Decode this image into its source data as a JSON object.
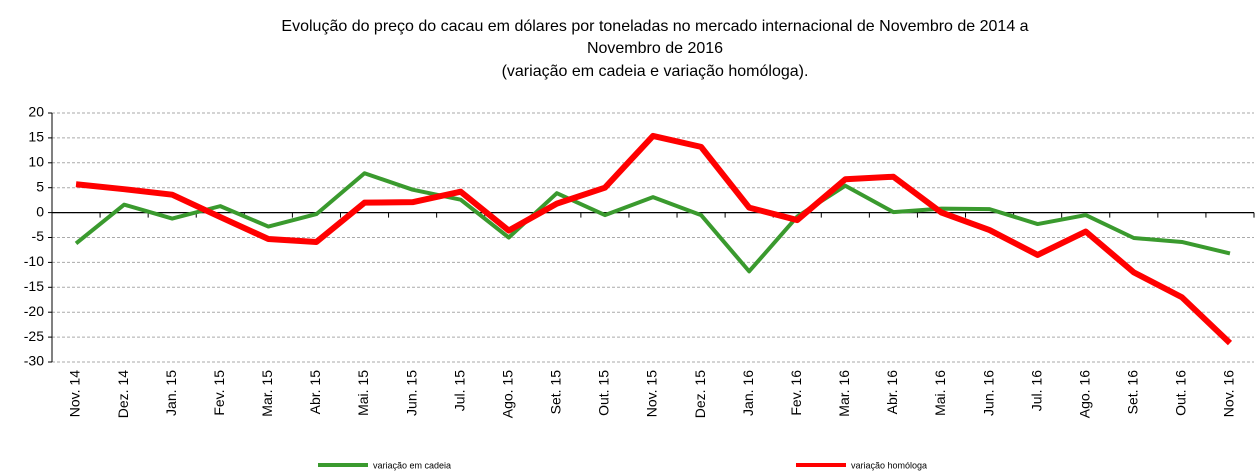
{
  "chart_data": {
    "type": "line",
    "title": [
      "Evolução do preço do cacau em dólares por toneladas no mercado internacional de Novembro de 2014 a",
      "Novembro de 2016"
    ],
    "subtitle": "(variação em cadeia e variação homóloga).",
    "categories": [
      "Nov. 14",
      "Dez. 14",
      "Jan. 15",
      "Fev. 15",
      "Mar. 15",
      "Abr. 15",
      "Mai. 15",
      "Jun. 15",
      "Jul. 15",
      "Ago. 15",
      "Set. 15",
      "Out. 15",
      "Nov. 15",
      "Dez. 15",
      "Jan. 16",
      "Fev. 16",
      "Mar. 16",
      "Abr. 16",
      "Mai. 16",
      "Jun. 16",
      "Jul. 16",
      "Ago. 16",
      "Set. 16",
      "Out. 16",
      "Nov. 16"
    ],
    "series": [
      {
        "name": "variação em cadeia",
        "color": "#3a9a2e",
        "values": [
          -6.2,
          1.6,
          -1.2,
          1.3,
          -2.8,
          -0.3,
          7.9,
          4.6,
          2.6,
          -5.0,
          3.9,
          -0.5,
          3.1,
          -0.5,
          -11.8,
          -0.8,
          5.4,
          0.1,
          0.8,
          0.7,
          -2.3,
          -0.5,
          -5.1,
          -5.9,
          -8.2
        ]
      },
      {
        "name": "variação homóloga",
        "color": "#ff0000",
        "values": [
          5.7,
          4.7,
          3.6,
          -0.9,
          -5.3,
          -5.9,
          2.0,
          2.1,
          4.2,
          -3.6,
          1.8,
          5.0,
          15.4,
          13.2,
          1.0,
          -1.5,
          6.7,
          7.2,
          0.0,
          -3.5,
          -8.5,
          -3.8,
          -12.0,
          -17.0,
          -26.2
        ]
      }
    ],
    "ylim": [
      -30,
      20
    ],
    "yticks": [
      -30,
      -25,
      -20,
      -15,
      -10,
      -5,
      0,
      5,
      10,
      15,
      20
    ],
    "grid": true
  }
}
